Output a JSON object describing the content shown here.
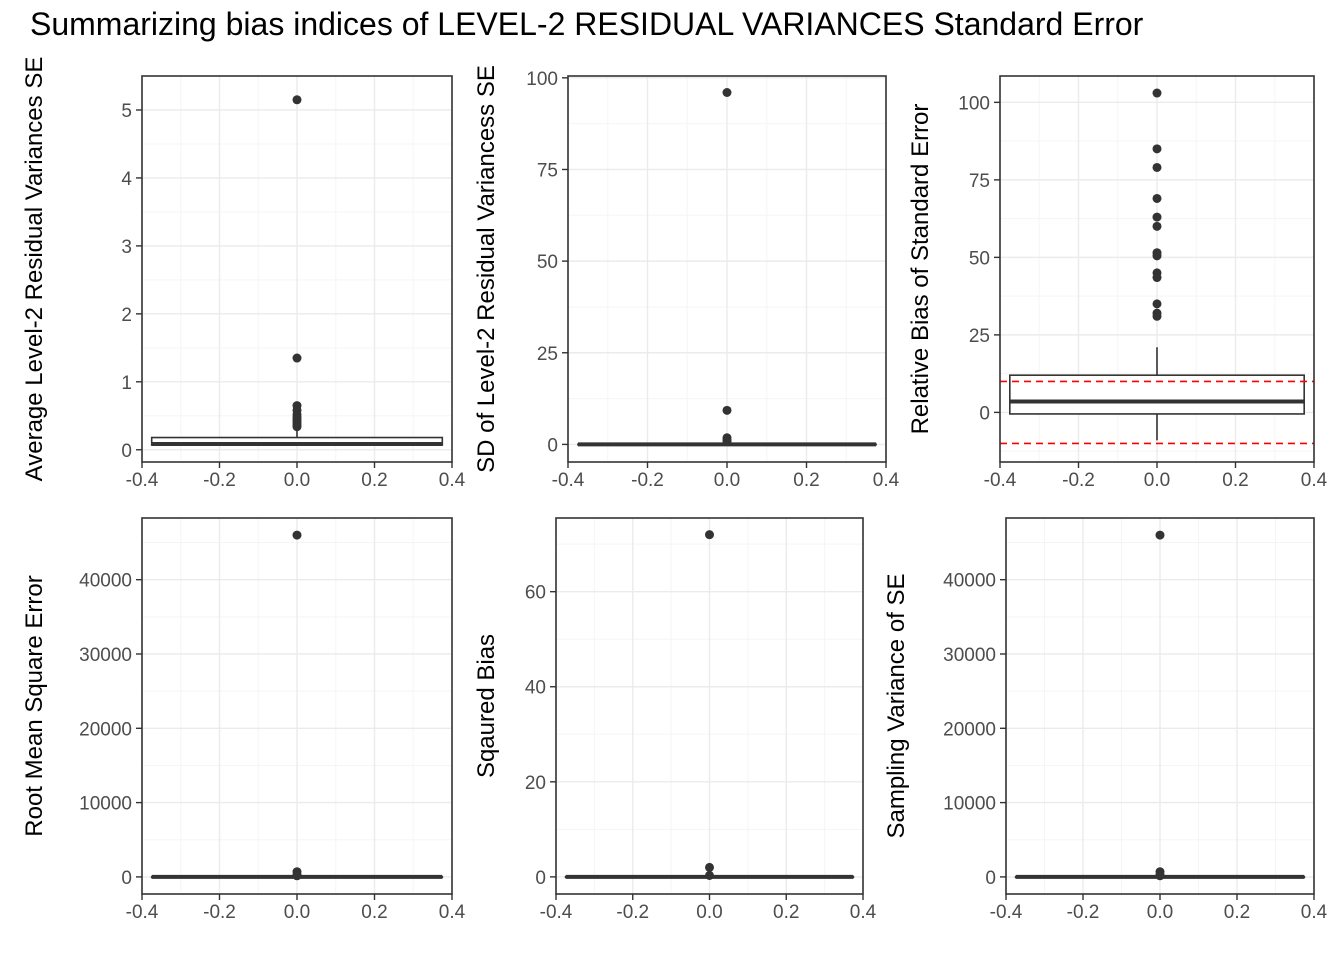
{
  "title": "Summarizing bias indices of LEVEL-2 RESIDUAL VARIANCES Standard Error",
  "colors": {
    "panel_border": "#333333",
    "grid_major": "#ebebeb",
    "grid_minor": "#f5f5f5",
    "box_fill": "#ffffff",
    "box_line": "#333333",
    "point": "#333333",
    "reference_line": "#ff0000",
    "tick_label": "#4d4d4d"
  },
  "chart_data": [
    {
      "type": "boxplot",
      "ylabel": "Average Level-2 Residual Variances SE",
      "xlim": [
        -0.4,
        0.4
      ],
      "x_ticks": [
        -0.4,
        -0.2,
        0.0,
        0.2,
        0.4
      ],
      "x_tick_labels": [
        "-0.4",
        "-0.2",
        "0.0",
        "0.2",
        "0.4"
      ],
      "ylim": [
        -0.18,
        5.5
      ],
      "y_ticks": [
        0,
        1,
        2,
        3,
        4,
        5
      ],
      "y_tick_labels": [
        "0",
        "1",
        "2",
        "3",
        "4",
        "5"
      ],
      "box": {
        "x": 0.0,
        "width": 0.75,
        "min": 0.06,
        "q1": 0.07,
        "median": 0.085,
        "q3": 0.18,
        "max": 0.3
      },
      "outliers": [
        5.15,
        1.35,
        0.65,
        0.58,
        0.52,
        0.48,
        0.45,
        0.42,
        0.39,
        0.36,
        0.34
      ],
      "grid": true
    },
    {
      "type": "boxplot",
      "ylabel": "SD of Level-2 Residual Variancess SE",
      "xlim": [
        -0.4,
        0.4
      ],
      "x_ticks": [
        -0.4,
        -0.2,
        0.0,
        0.2,
        0.4
      ],
      "x_tick_labels": [
        "-0.4",
        "-0.2",
        "0.0",
        "0.2",
        "0.4"
      ],
      "ylim": [
        -4.8,
        100.5
      ],
      "y_ticks": [
        0,
        25,
        50,
        75,
        100
      ],
      "y_tick_labels": [
        "0",
        "25",
        "50",
        "75",
        "100"
      ],
      "box": {
        "x": 0.0,
        "width": 0.75,
        "min": 0.0,
        "q1": 0.0,
        "median": 0.0,
        "q3": 0.05,
        "max": 0.1
      },
      "outliers": [
        96,
        9.3,
        1.8,
        1.2,
        0.8
      ],
      "grid": true
    },
    {
      "type": "boxplot",
      "ylabel": "Relative Bias of Standard Error",
      "xlim": [
        -0.4,
        0.4
      ],
      "x_ticks": [
        -0.4,
        -0.2,
        0.0,
        0.2,
        0.4
      ],
      "x_tick_labels": [
        "-0.4",
        "-0.2",
        "0.0",
        "0.2",
        "0.4"
      ],
      "ylim": [
        -16,
        108.5
      ],
      "y_ticks": [
        0,
        25,
        50,
        75,
        100
      ],
      "y_tick_labels": [
        "0",
        "25",
        "50",
        "75",
        "100"
      ],
      "box": {
        "x": 0.0,
        "width": 0.75,
        "min": -9,
        "q1": -0.5,
        "median": 3.5,
        "q3": 12,
        "max": 21
      },
      "outliers": [
        103,
        85,
        79,
        69,
        63,
        60,
        51.5,
        50.5,
        45,
        43.5,
        35,
        32,
        31
      ],
      "reference_lines": [
        10,
        -10
      ],
      "grid": true
    },
    {
      "type": "boxplot",
      "ylabel": "Root Mean Square Error",
      "xlim": [
        -0.4,
        0.4
      ],
      "x_ticks": [
        -0.4,
        -0.2,
        0.0,
        0.2,
        0.4
      ],
      "x_tick_labels": [
        "-0.4",
        "-0.2",
        "0.0",
        "0.2",
        "0.4"
      ],
      "ylim": [
        -2300,
        48300
      ],
      "y_ticks": [
        0,
        10000,
        20000,
        30000,
        40000
      ],
      "y_tick_labels": [
        "0",
        "10000",
        "20000",
        "30000",
        "40000"
      ],
      "box": {
        "x": 0.0,
        "width": 0.75,
        "min": 0,
        "q1": 0,
        "median": 0,
        "q3": 5,
        "max": 10
      },
      "outliers": [
        46000,
        700,
        300,
        150
      ],
      "grid": true
    },
    {
      "type": "boxplot",
      "ylabel": "Sqaured Bias",
      "xlim": [
        -0.4,
        0.4
      ],
      "x_ticks": [
        -0.4,
        -0.2,
        0.0,
        0.2,
        0.4
      ],
      "x_tick_labels": [
        "-0.4",
        "-0.2",
        "0.0",
        "0.2",
        "0.4"
      ],
      "ylim": [
        -3.6,
        75.5
      ],
      "y_ticks": [
        0,
        20,
        40,
        60
      ],
      "y_tick_labels": [
        "0",
        "20",
        "40",
        "60"
      ],
      "box": {
        "x": 0.0,
        "width": 0.75,
        "min": 0,
        "q1": 0,
        "median": 0,
        "q3": 0.02,
        "max": 0.05
      },
      "outliers": [
        72,
        2.0,
        0.3
      ],
      "grid": true
    },
    {
      "type": "boxplot",
      "ylabel": "Sampling Variance of SE",
      "xlim": [
        -0.4,
        0.4
      ],
      "x_ticks": [
        -0.4,
        -0.2,
        0.0,
        0.2,
        0.4
      ],
      "x_tick_labels": [
        "-0.4",
        "-0.2",
        "0.0",
        "0.2",
        "0.4"
      ],
      "ylim": [
        -2300,
        48300
      ],
      "y_ticks": [
        0,
        10000,
        20000,
        30000,
        40000
      ],
      "y_tick_labels": [
        "0",
        "10000",
        "20000",
        "30000",
        "40000"
      ],
      "box": {
        "x": 0.0,
        "width": 0.75,
        "min": 0,
        "q1": 0,
        "median": 0,
        "q3": 5,
        "max": 10
      },
      "outliers": [
        46000,
        700,
        300,
        150
      ],
      "grid": true
    }
  ]
}
